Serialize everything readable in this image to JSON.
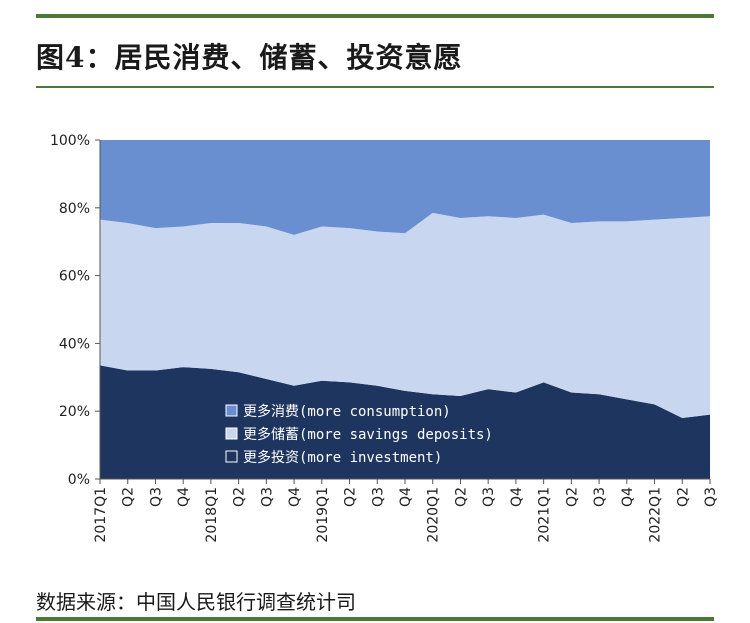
{
  "title": "图4：居民消费、储蓄、投资意愿",
  "source": "数据来源：中国人民银行调查统计司",
  "colors": {
    "consumption": "#6a8fd0",
    "savings": "#c8d7ef",
    "investment": "#1e3560",
    "rule": "#4a7a35"
  },
  "chart_data": {
    "type": "area",
    "stacked": true,
    "title": "",
    "xlabel": "",
    "ylabel": "",
    "ylim": [
      0,
      100
    ],
    "y_ticks": [
      "0%",
      "20%",
      "40%",
      "60%",
      "80%",
      "100%"
    ],
    "categories": [
      "2017Q1",
      "Q2",
      "Q3",
      "Q4",
      "2018Q1",
      "Q2",
      "Q3",
      "Q4",
      "2019Q1",
      "Q2",
      "Q3",
      "Q4",
      "2020Q1",
      "Q2",
      "Q3",
      "Q4",
      "2021Q1",
      "Q2",
      "Q3",
      "Q4",
      "2022Q1",
      "Q2",
      "Q3"
    ],
    "series": [
      {
        "name": "更多投资(more investment)",
        "key": "investment",
        "values": [
          33.5,
          32,
          32,
          33,
          32.5,
          31.5,
          29.5,
          27.5,
          29,
          28.5,
          27.5,
          26,
          25,
          24.5,
          26.5,
          25.5,
          28.5,
          25.5,
          25,
          23.5,
          22,
          18,
          19
        ]
      },
      {
        "name": "更多储蓄(more savings deposits)",
        "key": "savings",
        "values": [
          43,
          43.5,
          42,
          41.5,
          43,
          44,
          45,
          44.5,
          45.5,
          45.5,
          45.5,
          46.5,
          53.5,
          52.5,
          51,
          51.5,
          49.5,
          50,
          51,
          52.5,
          54.5,
          59,
          58.5
        ]
      },
      {
        "name": "更多消费(more consumption)",
        "key": "consumption",
        "values": [
          23.5,
          24.5,
          26,
          25.5,
          24.5,
          24.5,
          25.5,
          28,
          25.5,
          26,
          27,
          27.5,
          21.5,
          23,
          22.5,
          23,
          22,
          24.5,
          24,
          24,
          23.5,
          23,
          22.5
        ]
      }
    ],
    "legend": {
      "placement": "lower-center inside plot",
      "items": [
        "更多消费(more consumption)",
        "更多储蓄(more savings deposits)",
        "更多投资(more investment)"
      ]
    },
    "x_tick_labels": [
      "2017Q1",
      "Q2",
      "Q3",
      "Q4",
      "2018Q1",
      "Q2",
      "Q3",
      "Q4",
      "2019Q1",
      "Q2",
      "Q3",
      "Q4",
      "2020Q1",
      "Q2",
      "Q3",
      "Q4",
      "2021Q1",
      "Q2",
      "Q3",
      "Q4",
      "2022Q1",
      "Q2",
      "Q3"
    ]
  }
}
